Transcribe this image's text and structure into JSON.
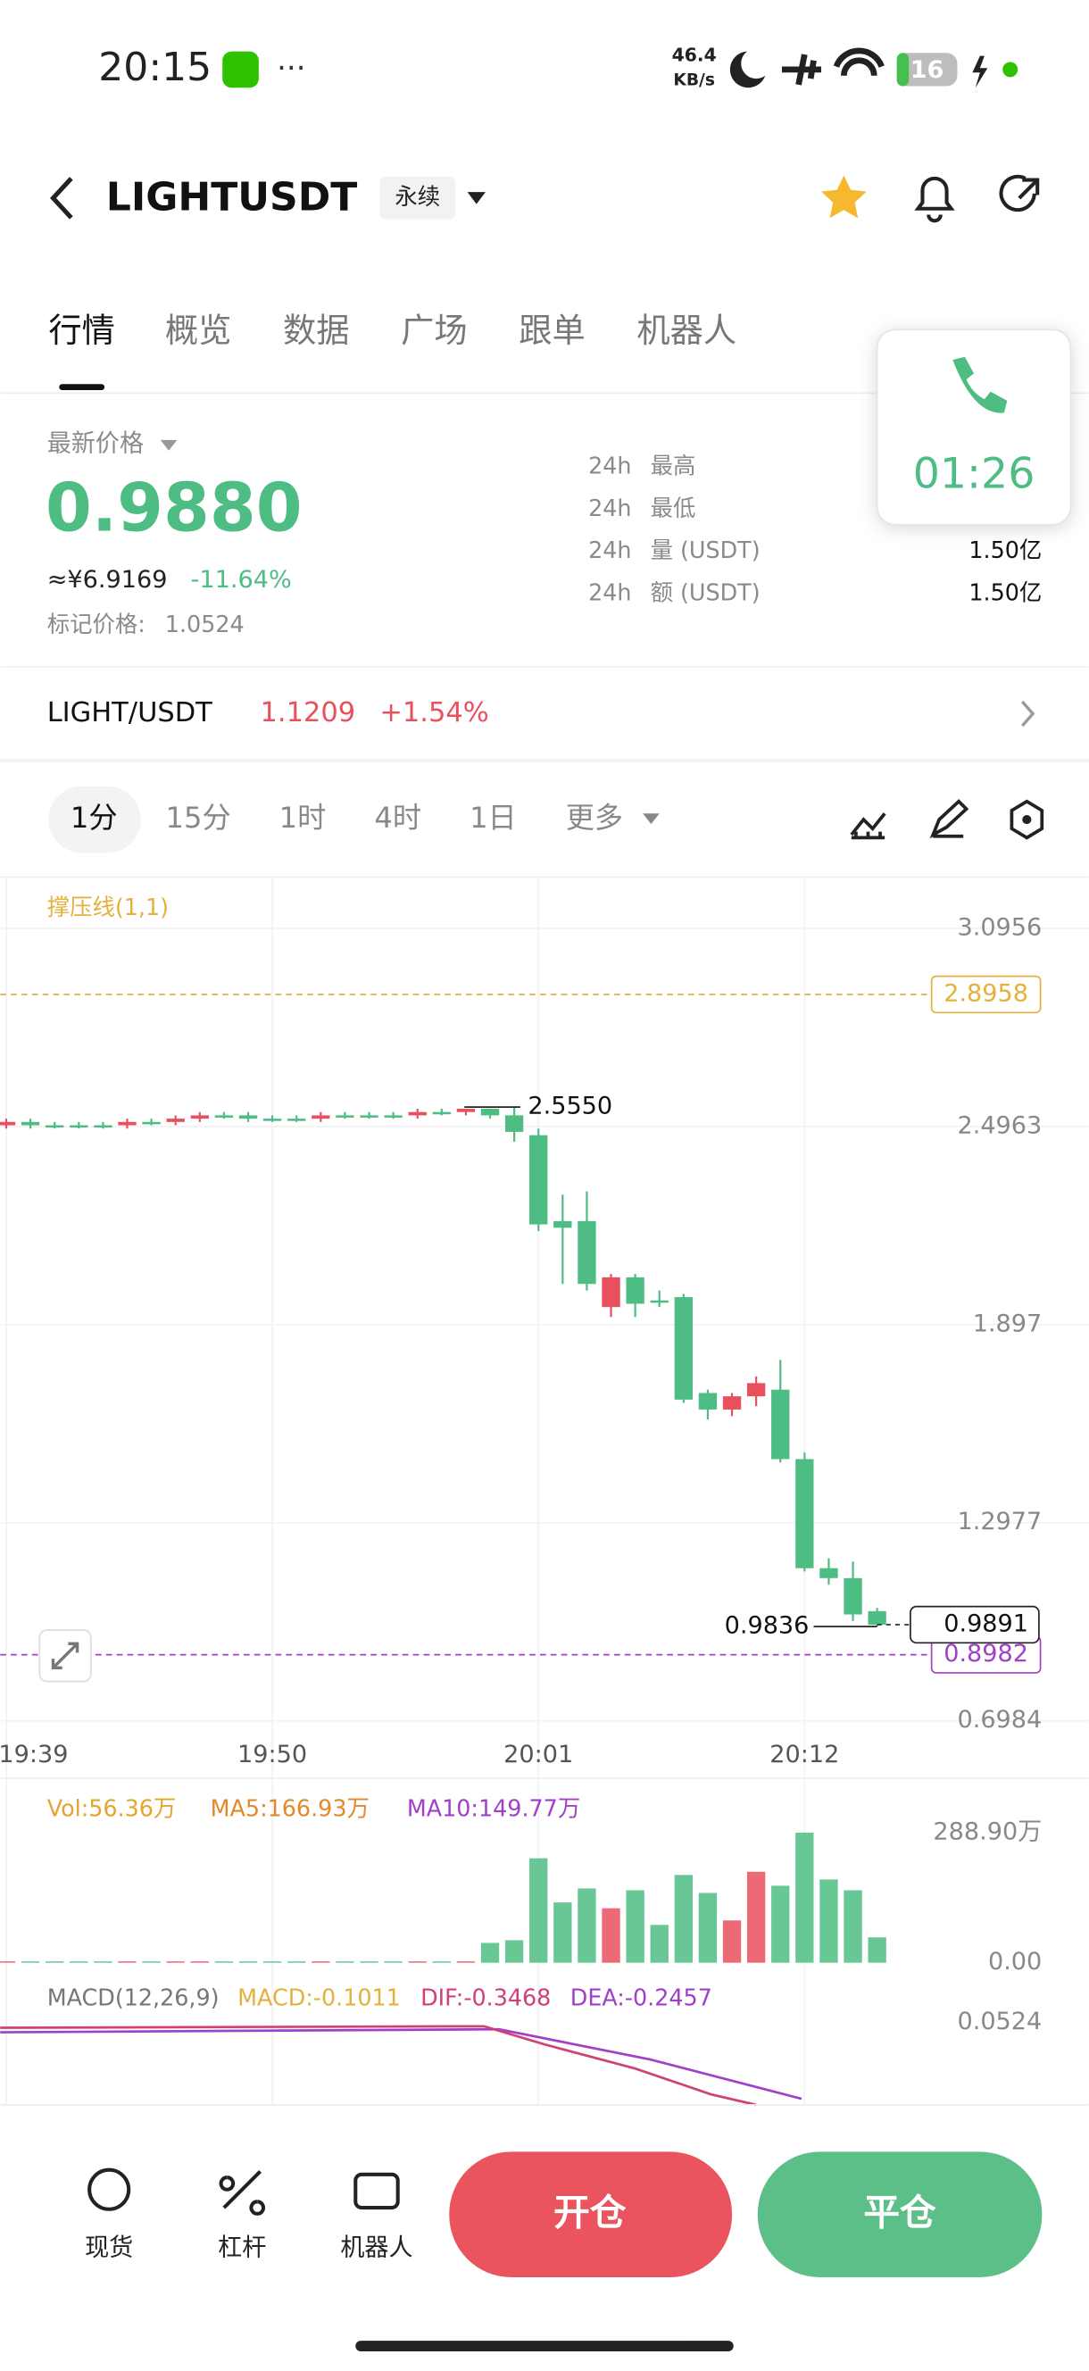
{
  "status_bar": {
    "time": "20:15",
    "net_speed": "46.4",
    "net_unit": "KB/s",
    "battery": "16"
  },
  "header": {
    "symbol": "LIGHTUSDT",
    "contract_type": "永续"
  },
  "tabs": [
    "行情",
    "概览",
    "数据",
    "广场",
    "跟单",
    "机器人"
  ],
  "call": {
    "timer": "01:26"
  },
  "price": {
    "label": "最新价格",
    "last": "0.9880",
    "cny": "≈¥6.9169",
    "change": "-11.64%",
    "mark_label": "标记价格:",
    "mark": "1.0524"
  },
  "stats": [
    {
      "period": "24h",
      "label": "最高"
    },
    {
      "period": "24h",
      "label": "最低"
    },
    {
      "period": "24h",
      "label": "量 (USDT)",
      "value": "1.50亿"
    },
    {
      "period": "24h",
      "label": "额 (USDT)",
      "value": "1.50亿"
    }
  ],
  "spot": {
    "pair": "LIGHT/USDT",
    "price": "1.1209",
    "change": "+1.54%"
  },
  "timeframes": [
    "1分",
    "15分",
    "1时",
    "4时",
    "1日",
    "更多"
  ],
  "chart_data": {
    "type": "candlestick",
    "indicator": "撑压线(1,1)",
    "categories": [
      "19:39",
      null,
      null,
      null,
      null,
      null,
      null,
      null,
      null,
      null,
      null,
      "19:50",
      null,
      null,
      null,
      null,
      null,
      null,
      null,
      null,
      null,
      null,
      "20:01",
      null,
      null,
      null,
      null,
      null,
      null,
      null,
      null,
      null,
      null,
      "20:12",
      null,
      null,
      null
    ],
    "open": [
      2.5,
      2.51,
      2.5,
      2.5,
      2.5,
      2.5,
      2.51,
      2.51,
      2.52,
      2.53,
      2.53,
      2.52,
      2.52,
      2.52,
      2.53,
      2.53,
      2.53,
      2.53,
      2.54,
      2.54,
      2.55,
      2.53,
      2.47,
      2.21,
      2.21,
      1.95,
      2.04,
      1.97,
      1.98,
      1.69,
      1.64,
      1.68,
      1.7,
      1.49,
      1.16,
      1.13,
      1.03
    ],
    "high": [
      2.52,
      2.52,
      2.51,
      2.51,
      2.51,
      2.52,
      2.52,
      2.53,
      2.54,
      2.54,
      2.54,
      2.53,
      2.53,
      2.54,
      2.54,
      2.54,
      2.54,
      2.55,
      2.55,
      2.55,
      2.55,
      2.555,
      2.49,
      2.29,
      2.3,
      2.05,
      2.05,
      2.0,
      1.99,
      1.7,
      1.69,
      1.74,
      1.79,
      1.51,
      1.19,
      1.18,
      1.04
    ],
    "low": [
      2.49,
      2.49,
      2.49,
      2.49,
      2.49,
      2.49,
      2.5,
      2.5,
      2.51,
      2.52,
      2.51,
      2.51,
      2.51,
      2.51,
      2.52,
      2.52,
      2.52,
      2.52,
      2.53,
      2.53,
      2.52,
      2.45,
      2.18,
      2.02,
      2.0,
      1.92,
      1.92,
      1.95,
      1.66,
      1.61,
      1.62,
      1.65,
      1.48,
      1.15,
      1.11,
      1.0,
      0.9836
    ],
    "close": [
      2.51,
      2.5,
      2.5,
      2.5,
      2.5,
      2.51,
      2.51,
      2.52,
      2.53,
      2.53,
      2.52,
      2.52,
      2.52,
      2.53,
      2.53,
      2.53,
      2.53,
      2.54,
      2.54,
      2.55,
      2.53,
      2.48,
      2.2,
      2.19,
      2.02,
      2.04,
      1.96,
      1.97,
      1.67,
      1.64,
      1.68,
      1.72,
      1.49,
      1.16,
      1.13,
      1.02,
      0.9891
    ],
    "up_color": "#e9505e",
    "down_color": "#4dbd83",
    "ylim": [
      0.68,
      3.251
    ],
    "yticks": [
      3.0956,
      2.4963,
      1.897,
      1.2977,
      0.6984
    ],
    "high_label": {
      "index": 21,
      "value": 2.555,
      "label": "2.5550"
    },
    "low_label": {
      "index": 36,
      "value": 0.9836
    },
    "current_price": 0.9891,
    "support_line": 2.8958,
    "resistance_line": 0.8982,
    "volume": {
      "title": "Vol:56.36万",
      "ma5": "MA5:166.93万",
      "ma10": "MA10:149.77万",
      "values": [
        3,
        3,
        3,
        3,
        3,
        3,
        3,
        3,
        3,
        3,
        3,
        3,
        3,
        3,
        3,
        3,
        3,
        3,
        3,
        3,
        44,
        50,
        232,
        134,
        165,
        121,
        161,
        84,
        195,
        155,
        94,
        202,
        171,
        288.9,
        185,
        161,
        56.36
      ],
      "ylim": [
        0,
        288.9
      ],
      "yticks": [
        {
          "value": 288.9,
          "label": "288.90万"
        },
        {
          "value": 0,
          "label": "0.00"
        }
      ]
    },
    "macd": {
      "title": "MACD(12,26,9)",
      "macd": "MACD:-0.1011",
      "dif": "DIF:-0.3468",
      "dea": "DEA:-0.2457",
      "ylim": [
        -0.14,
        0.15
      ],
      "yticks": [
        0.0524
      ]
    }
  },
  "bottom_bar": {
    "items": [
      "现货",
      "杠杆",
      "机器人"
    ],
    "open": "开仓",
    "close": "平仓"
  }
}
